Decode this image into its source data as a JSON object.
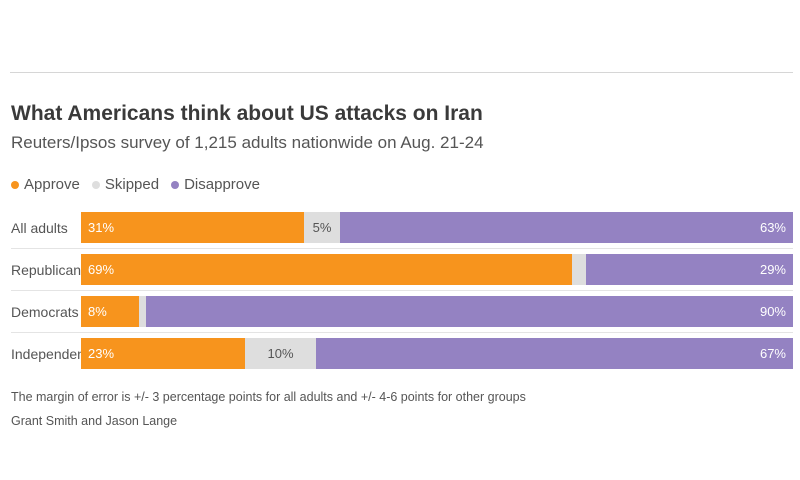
{
  "title": "What Americans think about US attacks on Iran",
  "subtitle": "Reuters/Ipsos survey of 1,215 adults nationwide on Aug. 21-24",
  "colors": {
    "approve": "#f7941d",
    "skipped": "#dedede",
    "disapprove": "#9482c2"
  },
  "legend": [
    {
      "label": "Approve",
      "color": "#f7941d"
    },
    {
      "label": "Skipped",
      "color": "#dedede"
    },
    {
      "label": "Disapprove",
      "color": "#9482c2"
    }
  ],
  "chart_data": {
    "type": "bar",
    "stacked": true,
    "orientation": "horizontal",
    "categories": [
      "All adults",
      "Republicans",
      "Democrats",
      "Independents"
    ],
    "series": [
      {
        "name": "Approve",
        "values": [
          31,
          69,
          8,
          23
        ],
        "labels": [
          "31%",
          "69%",
          "8%",
          "23%"
        ]
      },
      {
        "name": "Skipped",
        "values": [
          5,
          2,
          1,
          10
        ],
        "labels": [
          "5%",
          "",
          "",
          "10%"
        ]
      },
      {
        "name": "Disapprove",
        "values": [
          63,
          29,
          90,
          67
        ],
        "labels": [
          "63%",
          "29%",
          "90%",
          "67%"
        ]
      }
    ],
    "legend_position": "top-left"
  },
  "note": "The margin of error is +/- 3 percentage points for all adults and +/- 4-6 points for other groups",
  "byline": "Grant Smith and Jason Lange"
}
